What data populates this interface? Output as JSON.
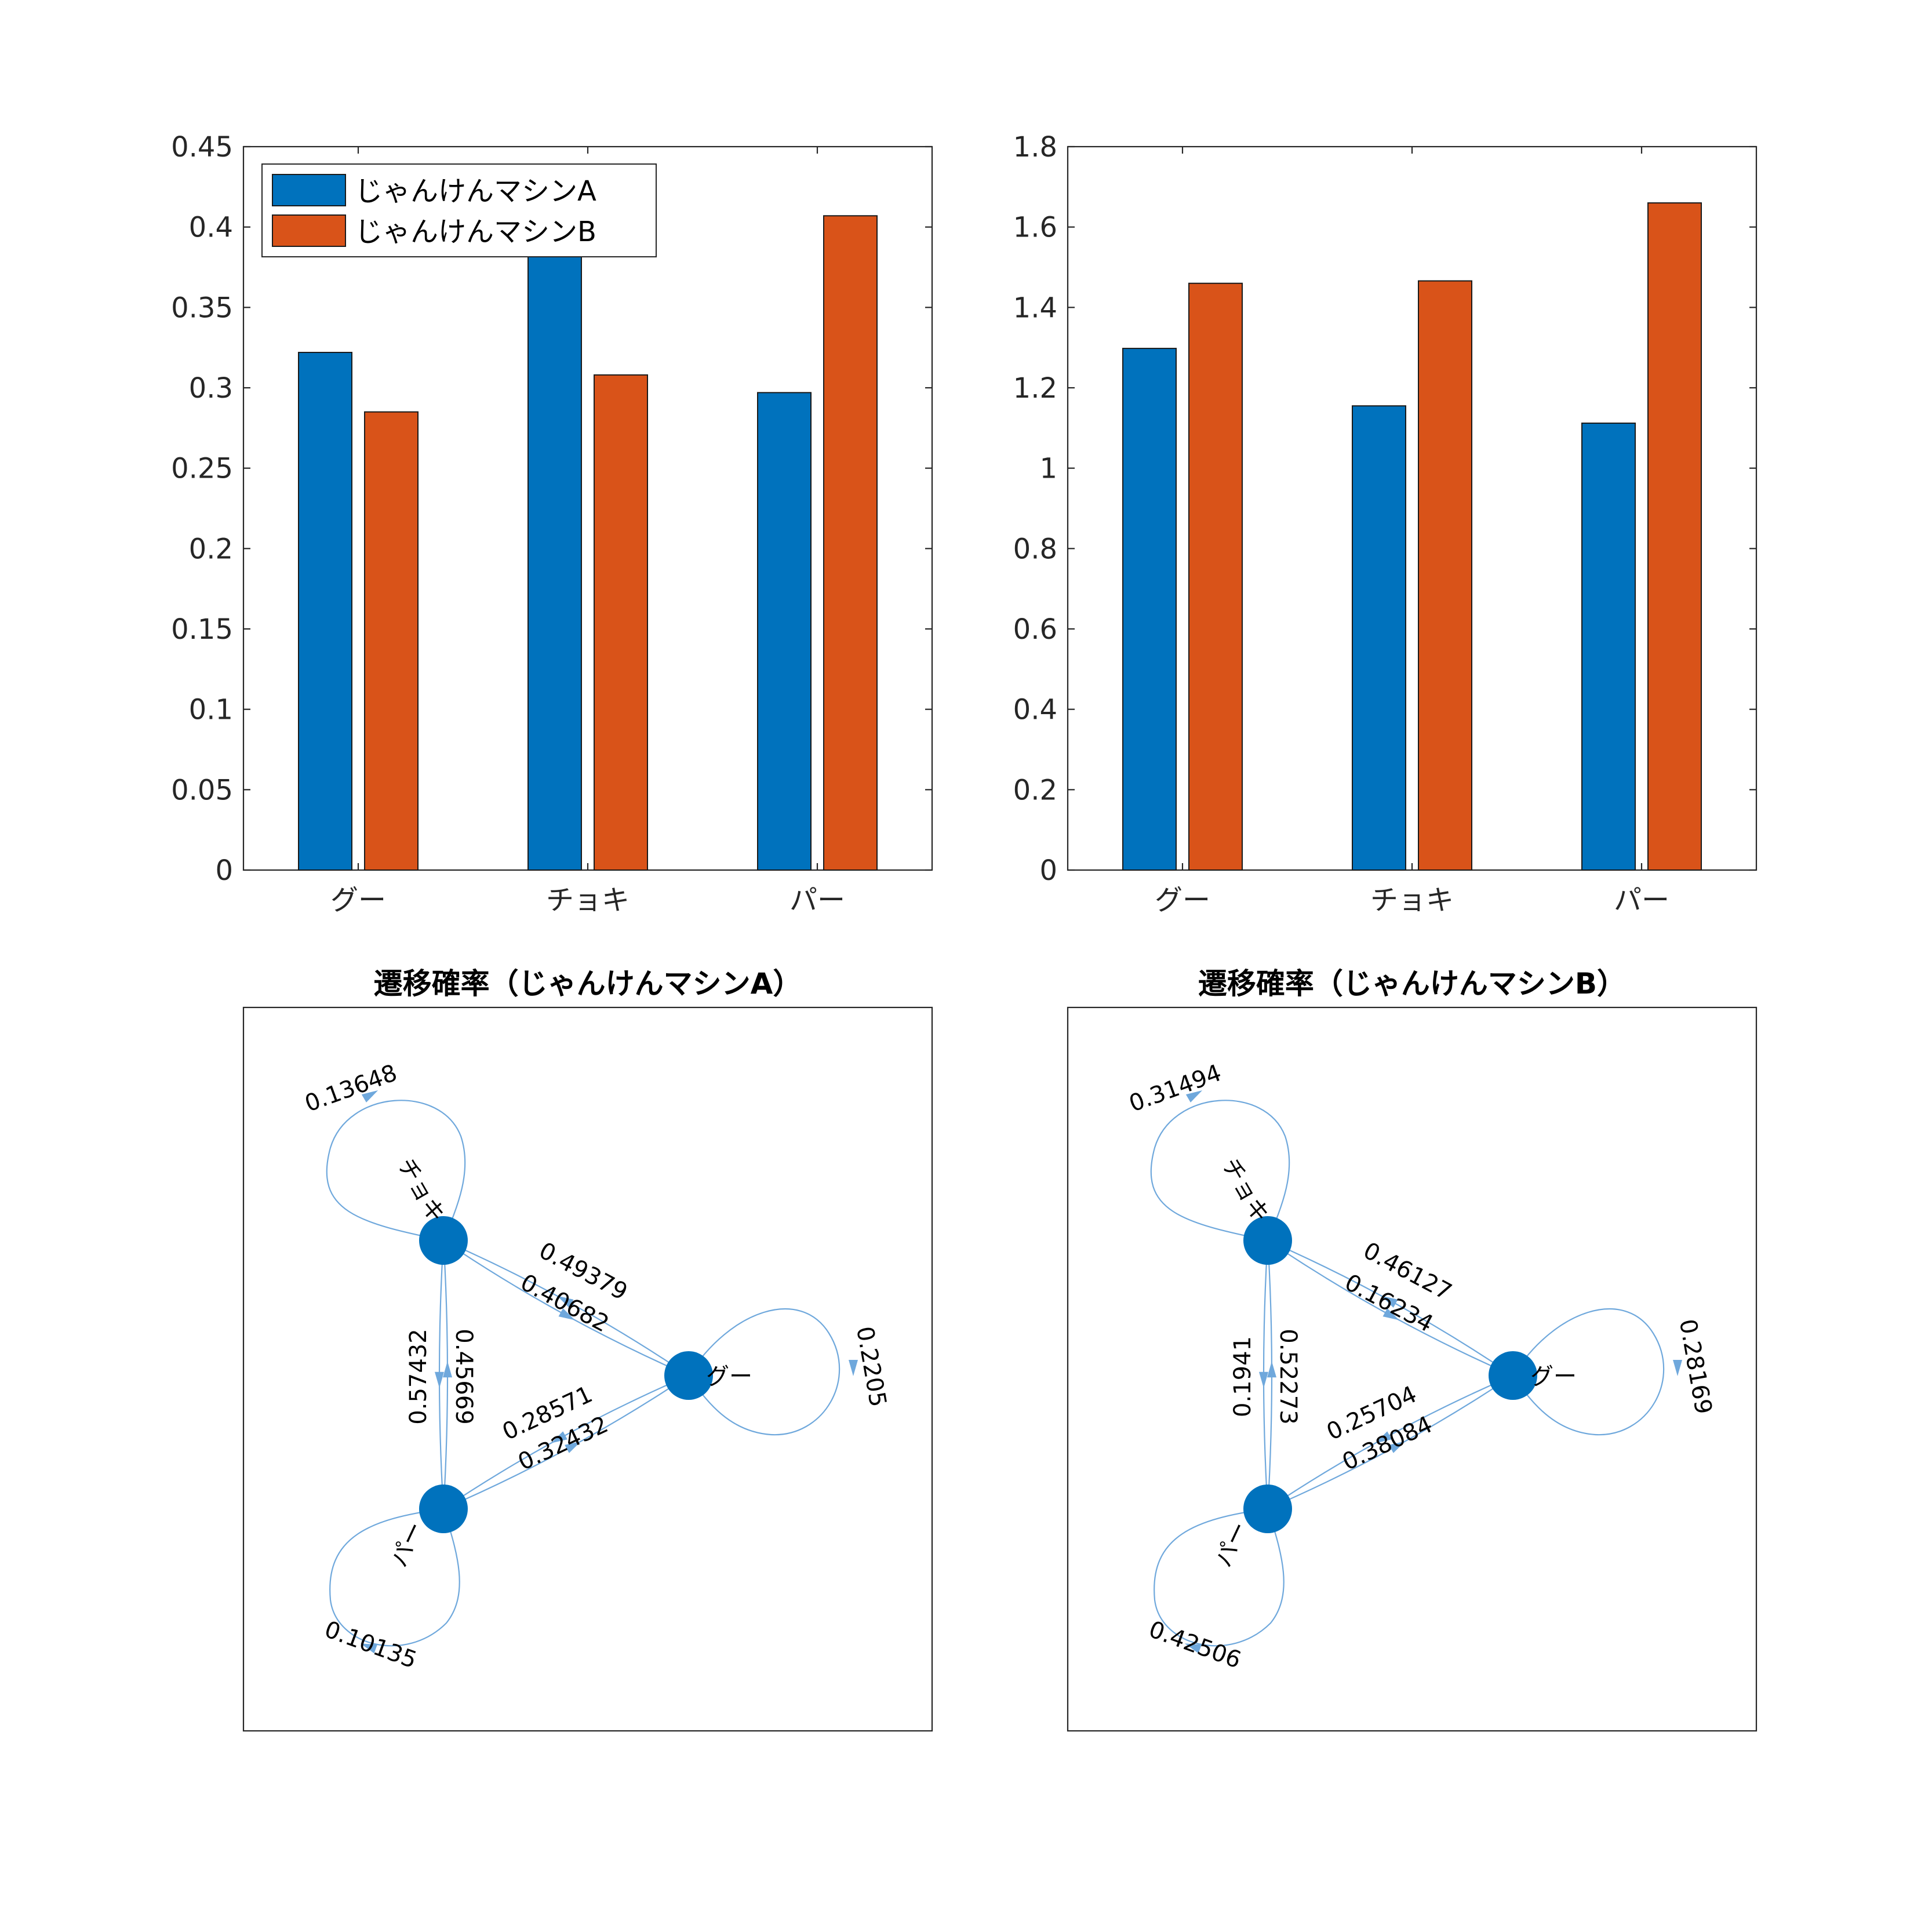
{
  "colors": {
    "series_a": "#0072BD",
    "series_b": "#D95319",
    "node": "#0072BD",
    "edge": "#6fa8dc"
  },
  "chart_data": [
    {
      "type": "bar",
      "categories": [
        "グー",
        "チョキ",
        "パー"
      ],
      "series": [
        {
          "name": "じゃんけんマシンA",
          "values": [
            0.322,
            0.385,
            0.297
          ]
        },
        {
          "name": "じゃんけんマシンB",
          "values": [
            0.285,
            0.308,
            0.407
          ]
        }
      ],
      "ylim": [
        0,
        0.45
      ],
      "yticks": [
        "0",
        "0.05",
        "0.1",
        "0.15",
        "0.2",
        "0.25",
        "0.3",
        "0.35",
        "0.4",
        "0.45"
      ],
      "legend": "top-left",
      "grid": false
    },
    {
      "type": "bar",
      "categories": [
        "グー",
        "チョキ",
        "パー"
      ],
      "series": [
        {
          "values": [
            1.298,
            1.155,
            1.112
          ]
        },
        {
          "values": [
            1.46,
            1.466,
            1.66
          ]
        }
      ],
      "ylim": [
        0,
        1.8
      ],
      "yticks": [
        "0",
        "0.2",
        "0.4",
        "0.6",
        "0.8",
        "1",
        "1.2",
        "1.4",
        "1.6",
        "1.8"
      ],
      "grid": false
    },
    {
      "type": "graph",
      "title": "遷移確率（じゃんけんマシンA）",
      "nodes": [
        "グー",
        "チョキ",
        "パー"
      ],
      "edges": [
        {
          "from": "チョキ",
          "to": "チョキ",
          "label": "0.13648"
        },
        {
          "from": "グー",
          "to": "グー",
          "label": "0.2205"
        },
        {
          "from": "パー",
          "to": "パー",
          "label": "0.10135"
        },
        {
          "from": "グー",
          "to": "チョキ",
          "label": "0.49379"
        },
        {
          "from": "チョキ",
          "to": "グー",
          "label": "0.40682"
        },
        {
          "from": "チョキ",
          "to": "パー",
          "label": "0.45669"
        },
        {
          "from": "パー",
          "to": "チョキ",
          "label": "0.57432"
        },
        {
          "from": "グー",
          "to": "パー",
          "label": "0.28571"
        },
        {
          "from": "パー",
          "to": "グー",
          "label": "0.32432"
        }
      ]
    },
    {
      "type": "graph",
      "title": "遷移確率（じゃんけんマシンB）",
      "nodes": [
        "グー",
        "チョキ",
        "パー"
      ],
      "edges": [
        {
          "from": "チョキ",
          "to": "チョキ",
          "label": "0.31494"
        },
        {
          "from": "グー",
          "to": "グー",
          "label": "0.28169"
        },
        {
          "from": "パー",
          "to": "パー",
          "label": "0.42506"
        },
        {
          "from": "グー",
          "to": "チョキ",
          "label": "0.46127"
        },
        {
          "from": "チョキ",
          "to": "グー",
          "label": "0.16234"
        },
        {
          "from": "チョキ",
          "to": "パー",
          "label": "0.52273"
        },
        {
          "from": "パー",
          "to": "チョキ",
          "label": "0.1941"
        },
        {
          "from": "グー",
          "to": "パー",
          "label": "0.25704"
        },
        {
          "from": "パー",
          "to": "グー",
          "label": "0.38084"
        }
      ]
    }
  ]
}
